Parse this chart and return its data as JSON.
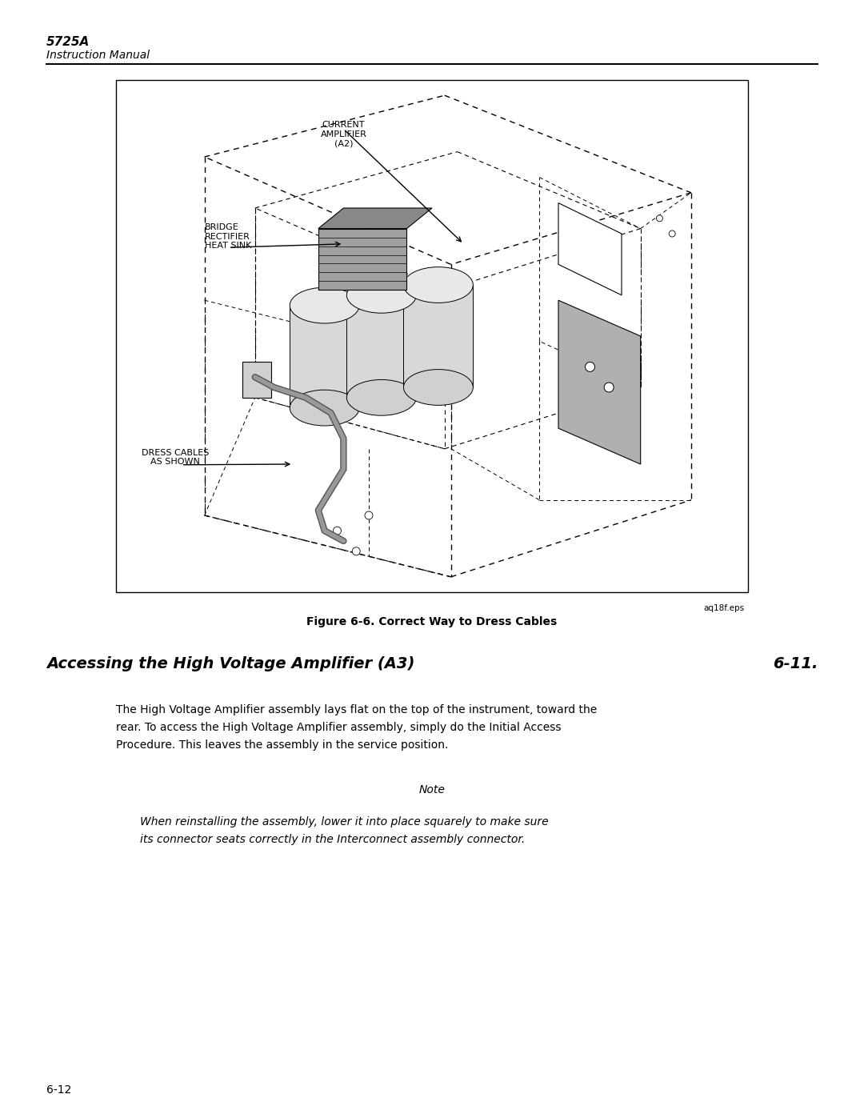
{
  "page_title": "5725A",
  "page_subtitle": "Instruction Manual",
  "page_number": "6-12",
  "figure_caption": "Figure 6-6. Correct Way to Dress Cables",
  "figure_filename": "aq18f.eps",
  "section_heading": "Accessing the High Voltage Amplifier (A3)",
  "section_number": "6-11.",
  "body_text_line1": "The High Voltage Amplifier assembly lays flat on the top of the instrument, toward the",
  "body_text_line2": "rear. To access the High Voltage Amplifier assembly, simply do the Initial Access",
  "body_text_line3": "Procedure. This leaves the assembly in the service position.",
  "note_title": "Note",
  "note_text_line1": "When reinstalling the assembly, lower it into place squarely to make sure",
  "note_text_line2": "its connector seats correctly in the Interconnect assembly connector.",
  "label_current_amplifier": "CURRENT\nAMPLIFIER\n(A2)",
  "label_bridge_rectifier": "BRIDGE\nRECTIFIER\nHEAT SINK",
  "label_dress_cables": "DRESS CABLES\nAS SHOWN",
  "bg_color": "#ffffff",
  "text_color": "#000000"
}
